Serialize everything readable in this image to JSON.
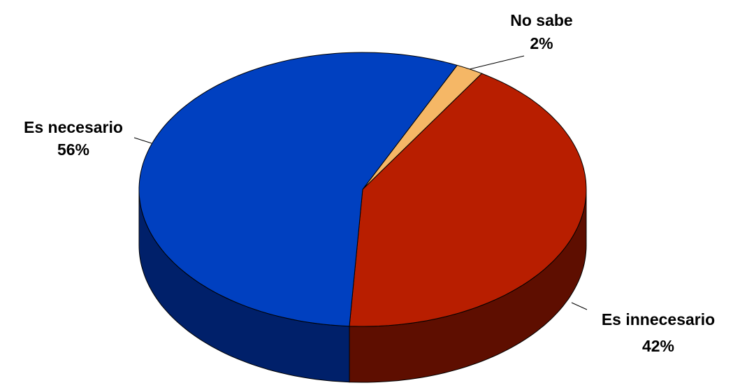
{
  "chart_data": {
    "type": "pie",
    "title": "",
    "slices": [
      {
        "label": "No sabe",
        "value": 2,
        "display": "2%",
        "color": "#f5b766",
        "side_color": "#c98b3d"
      },
      {
        "label": "Es innecesario",
        "value": 42,
        "display": "42%",
        "color": "#b81e00",
        "side_color": "#5e0e00"
      },
      {
        "label": "Es necesario",
        "value": 56,
        "display": "56%",
        "color": "#0040c0",
        "side_color": "#00206a"
      }
    ],
    "legend": "none",
    "style": "3d-pie",
    "labels_position": "outside with leader lines"
  }
}
